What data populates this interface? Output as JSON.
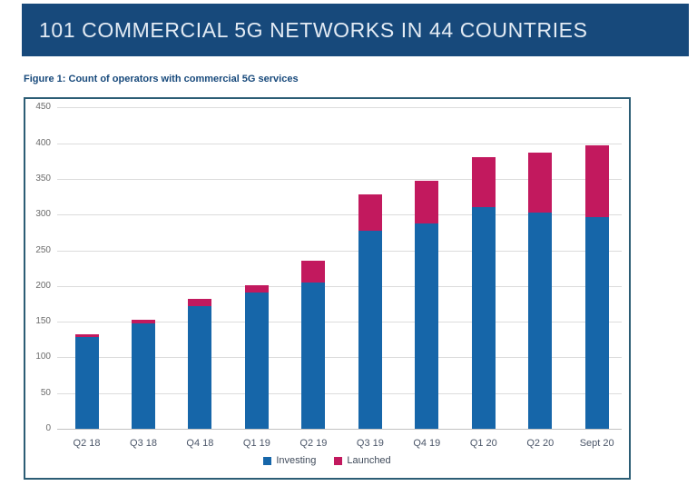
{
  "header": {
    "title": "101 COMMERCIAL 5G NETWORKS IN 44 COUNTRIES"
  },
  "figure": {
    "caption": "Figure 1: Count of operators with commercial 5G services"
  },
  "colors": {
    "banner_bg": "#17497B",
    "banner_text": "#E3EBF4",
    "caption_text": "#17497B",
    "frame_border": "#2C5D75",
    "investing_blue": "#1666A9",
    "launched_magenta": "#C2195E",
    "gridline": "#DCDCDC",
    "axis_line": "#C2C2C2"
  },
  "chart_data": {
    "type": "bar",
    "stacked": true,
    "title": "",
    "xlabel": "",
    "ylabel": "",
    "categories": [
      "Q2 18",
      "Q3 18",
      "Q4 18",
      "Q1 19",
      "Q2 19",
      "Q3 19",
      "Q4 19",
      "Q1 20",
      "Q2 20",
      "Sept 20"
    ],
    "series": [
      {
        "name": "Investing",
        "color": "#1666A9",
        "values": [
          128,
          148,
          172,
          191,
          205,
          277,
          287,
          311,
          303,
          296
        ]
      },
      {
        "name": "Launched",
        "color": "#C2195E",
        "values": [
          5,
          5,
          10,
          10,
          30,
          51,
          61,
          70,
          84,
          101
        ]
      }
    ],
    "totals": [
      133,
      153,
      182,
      201,
      235,
      328,
      348,
      381,
      387,
      397
    ],
    "ylim": [
      0,
      450
    ],
    "ytick_step": 50,
    "ytick_labels": [
      "0",
      "50",
      "100",
      "150",
      "200",
      "250",
      "300",
      "350",
      "400",
      "450"
    ],
    "grid": true,
    "legend_position": "bottom"
  }
}
